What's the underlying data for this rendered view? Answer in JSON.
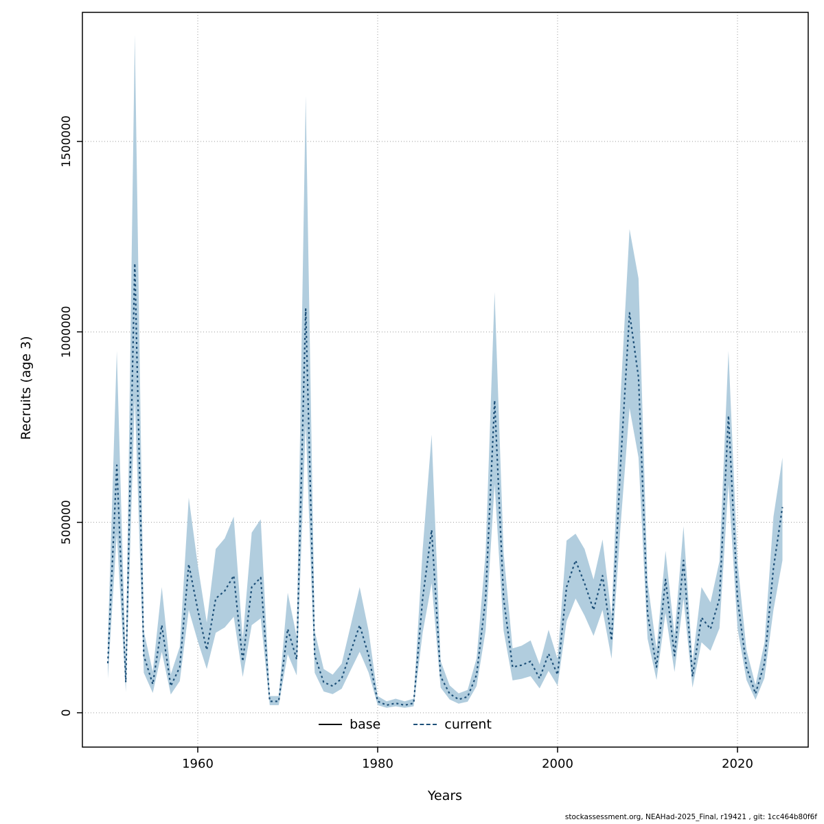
{
  "page": {
    "ylabel": "Recruits (age 3)",
    "xlabel": "Years",
    "footer": "stockassessment.org, NEAHad-2025_Final, r19421 , git: 1cc464b80f6f"
  },
  "legend": {
    "base_label": "base",
    "current_label": "current"
  },
  "colors": {
    "band": "#A9C8DA",
    "line": "#1C4F78",
    "grid": "#999999",
    "axis": "#000000",
    "base_line": "#000000"
  },
  "chart_data": {
    "type": "line",
    "title": "",
    "xlabel": "Years",
    "ylabel": "Recruits (age 3)",
    "xlim": [
      1948,
      2027
    ],
    "ylim": [
      0,
      1800000
    ],
    "xticks": [
      1960,
      1980,
      2000,
      2020
    ],
    "yticks": [
      0,
      500000,
      1000000,
      1500000
    ],
    "ytick_labels": [
      "0",
      "500000",
      "1000000",
      "1500000"
    ],
    "xtick_labels": [
      "1960",
      "1980",
      "2000",
      "2020"
    ],
    "grid": true,
    "legend_position": "bottom",
    "legend_entries": [
      {
        "name": "base",
        "style": "solid",
        "color": "#000000"
      },
      {
        "name": "current",
        "style": "dotted",
        "color": "#1C4F78"
      }
    ],
    "series": [
      {
        "name": "current",
        "style": "dotted",
        "color": "#1C4F78",
        "has_confidence_band": true,
        "x": [
          1950,
          1951,
          1952,
          1953,
          1954,
          1955,
          1956,
          1957,
          1958,
          1959,
          1960,
          1961,
          1962,
          1963,
          1964,
          1965,
          1966,
          1967,
          1968,
          1969,
          1970,
          1971,
          1972,
          1973,
          1974,
          1975,
          1976,
          1977,
          1978,
          1979,
          1980,
          1981,
          1982,
          1983,
          1984,
          1985,
          1986,
          1987,
          1988,
          1989,
          1990,
          1991,
          1992,
          1993,
          1994,
          1995,
          1996,
          1997,
          1998,
          1999,
          2000,
          2001,
          2002,
          2003,
          2004,
          2005,
          2006,
          2007,
          2008,
          2009,
          2010,
          2011,
          2012,
          2013,
          2014,
          2015,
          2016,
          2017,
          2018,
          2019,
          2020,
          2021,
          2022,
          2023,
          2024,
          2025
        ],
        "values": [
          130000,
          650000,
          80000,
          1180000,
          150000,
          75000,
          230000,
          70000,
          120000,
          390000,
          270000,
          165000,
          300000,
          320000,
          360000,
          135000,
          330000,
          355000,
          30000,
          30000,
          220000,
          140000,
          1060000,
          150000,
          80000,
          70000,
          90000,
          160000,
          230000,
          150000,
          30000,
          20000,
          25000,
          20000,
          25000,
          300000,
          480000,
          95000,
          50000,
          35000,
          42000,
          100000,
          300000,
          820000,
          300000,
          120000,
          125000,
          135000,
          90000,
          155000,
          100000,
          330000,
          400000,
          340000,
          270000,
          360000,
          190000,
          650000,
          1050000,
          880000,
          260000,
          120000,
          350000,
          150000,
          400000,
          95000,
          250000,
          220000,
          300000,
          780000,
          300000,
          120000,
          50000,
          130000,
          380000,
          540000
        ],
        "lower": [
          90000,
          470000,
          55000,
          830000,
          105000,
          52000,
          160000,
          48000,
          83000,
          270000,
          188000,
          115000,
          210000,
          224000,
          252000,
          94000,
          230000,
          248000,
          20000,
          20000,
          154000,
          98000,
          760000,
          105000,
          56000,
          49000,
          63000,
          112000,
          160000,
          105000,
          20000,
          13000,
          17000,
          13000,
          17000,
          210000,
          340000,
          66000,
          35000,
          24000,
          29000,
          70000,
          215000,
          600000,
          215000,
          85000,
          89000,
          96000,
          64000,
          110000,
          71000,
          240000,
          300000,
          255000,
          202000,
          270000,
          142000,
          490000,
          800000,
          670000,
          195000,
          86000,
          262000,
          107000,
          300000,
          66000,
          185000,
          163000,
          222000,
          600000,
          222000,
          86000,
          34000,
          91000,
          270000,
          400000
        ],
        "upper": [
          187000,
          950000,
          116000,
          1780000,
          214000,
          108000,
          330000,
          101000,
          173000,
          565000,
          388000,
          237000,
          430000,
          458000,
          515000,
          194000,
          473000,
          508000,
          44000,
          44000,
          315000,
          200000,
          1620000,
          214000,
          115000,
          100000,
          129000,
          229000,
          330000,
          214000,
          44000,
          30000,
          37000,
          30000,
          37000,
          428000,
          730000,
          136000,
          72000,
          51000,
          60000,
          143000,
          420000,
          1105000,
          420000,
          169000,
          176000,
          190000,
          127000,
          218000,
          141000,
          452000,
          470000,
          430000,
          350000,
          455000,
          254000,
          830000,
          1270000,
          1140000,
          345000,
          167000,
          425000,
          205000,
          490000,
          135000,
          330000,
          290000,
          398000,
          950000,
          398000,
          165000,
          73000,
          184000,
          515000,
          670000
        ]
      },
      {
        "name": "base",
        "style": "solid",
        "color": "#000000",
        "note": "base series coincides with current (hidden underneath); only legend entry visible"
      }
    ]
  }
}
